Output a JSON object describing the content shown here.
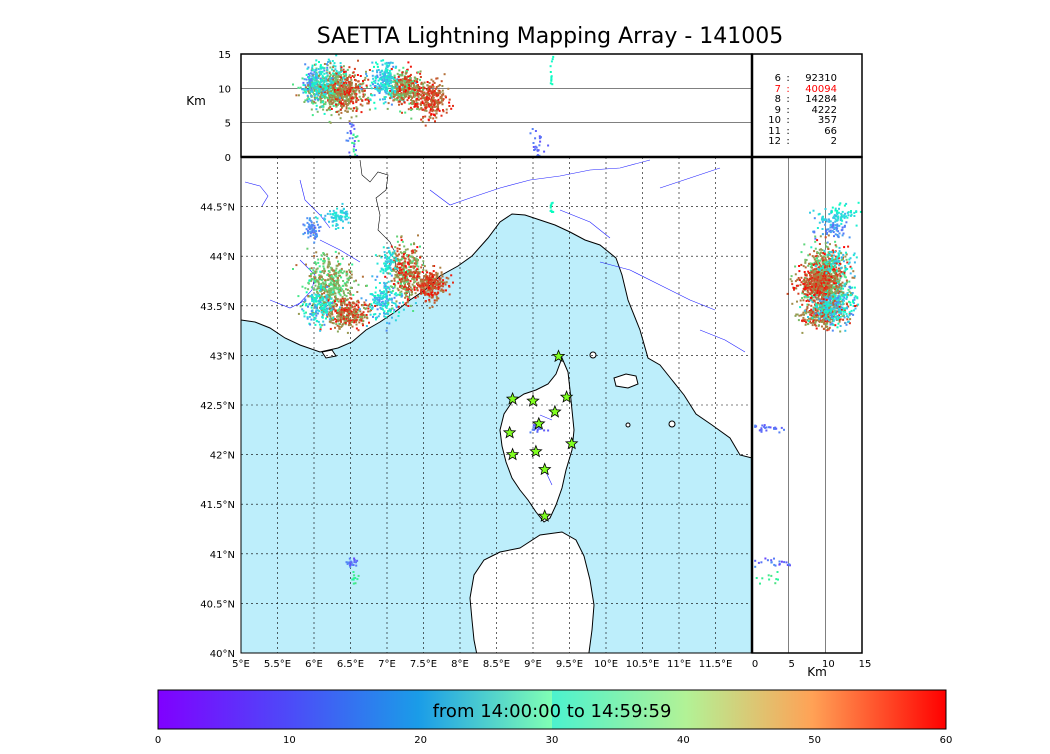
{
  "title": "SAETTA Lightning Mapping Array - 141005",
  "chart_data": {
    "type": "scatter",
    "title": "SAETTA Lightning Mapping Array - 141005",
    "map": {
      "lon_range": [
        5,
        12
      ],
      "lat_range": [
        40,
        45
      ],
      "xticks": [
        {
          "v": 5,
          "t": "5°E"
        },
        {
          "v": 5.5,
          "t": "5.5°E"
        },
        {
          "v": 6,
          "t": "6°E"
        },
        {
          "v": 6.5,
          "t": "6.5°E"
        },
        {
          "v": 7,
          "t": "7°E"
        },
        {
          "v": 7.5,
          "t": "7.5°E"
        },
        {
          "v": 8,
          "t": "8°E"
        },
        {
          "v": 8.5,
          "t": "8.5°E"
        },
        {
          "v": 9,
          "t": "9°E"
        },
        {
          "v": 9.5,
          "t": "9.5°E"
        },
        {
          "v": 10,
          "t": "10°E"
        },
        {
          "v": 10.5,
          "t": "10.5°E"
        },
        {
          "v": 11,
          "t": "11°E"
        },
        {
          "v": 11.5,
          "t": "11.5°E"
        }
      ],
      "yticks": [
        {
          "v": 40,
          "t": "40°N"
        },
        {
          "v": 40.5,
          "t": "40.5°N"
        },
        {
          "v": 41,
          "t": "41°N"
        },
        {
          "v": 41.5,
          "t": "41.5°N"
        },
        {
          "v": 42,
          "t": "42°N"
        },
        {
          "v": 42.5,
          "t": "42.5°N"
        },
        {
          "v": 43,
          "t": "43°N"
        },
        {
          "v": 43.5,
          "t": "43.5°N"
        },
        {
          "v": 44,
          "t": "44°N"
        },
        {
          "v": 44.5,
          "t": "44.5°N"
        }
      ],
      "grid": true
    },
    "altitude_axis": {
      "label": "Km",
      "range": [
        0,
        15
      ],
      "ticks": [
        {
          "v": 0,
          "t": "0"
        },
        {
          "v": 5,
          "t": "5"
        },
        {
          "v": 10,
          "t": "10"
        },
        {
          "v": 15,
          "t": "15"
        }
      ]
    },
    "colorbar": {
      "label": "from 14:00:00 to 14:59:59",
      "range": [
        0,
        60
      ],
      "ticks": [
        {
          "v": 0,
          "t": "0"
        },
        {
          "v": 10,
          "t": "10"
        },
        {
          "v": 20,
          "t": "20"
        },
        {
          "v": 30,
          "t": "30"
        },
        {
          "v": 40,
          "t": "40"
        },
        {
          "v": 50,
          "t": "50"
        },
        {
          "v": 60,
          "t": "60"
        }
      ],
      "colormap": "rainbow"
    },
    "station_counts": [
      {
        "stations": "6",
        "sep": ":",
        "count": "92310",
        "highlight": false
      },
      {
        "stations": "7",
        "sep": ":",
        "count": "40094",
        "highlight": true
      },
      {
        "stations": "8",
        "sep": ":",
        "count": "14284",
        "highlight": false
      },
      {
        "stations": "9",
        "sep": ":",
        "count": "4222",
        "highlight": false
      },
      {
        "stations": "10",
        "sep": ":",
        "count": "357",
        "highlight": false
      },
      {
        "stations": "11",
        "sep": ":",
        "count": "66",
        "highlight": false
      },
      {
        "stations": "12",
        "sep": ":",
        "count": "2",
        "highlight": false
      }
    ],
    "stations": [
      {
        "lon": 9.35,
        "lat": 42.99
      },
      {
        "lon": 8.72,
        "lat": 42.56
      },
      {
        "lon": 9.0,
        "lat": 42.54
      },
      {
        "lon": 9.46,
        "lat": 42.58
      },
      {
        "lon": 9.3,
        "lat": 42.43
      },
      {
        "lon": 9.08,
        "lat": 42.31
      },
      {
        "lon": 8.68,
        "lat": 42.22
      },
      {
        "lon": 9.53,
        "lat": 42.11
      },
      {
        "lon": 9.04,
        "lat": 42.03
      },
      {
        "lon": 8.72,
        "lat": 42.0
      },
      {
        "lon": 9.16,
        "lat": 41.85
      },
      {
        "lon": 9.16,
        "lat": 41.38
      }
    ],
    "clusters": [
      {
        "lon": 5.95,
        "lat": 44.28,
        "slon": 0.05,
        "slat": 0.05,
        "tmin": 8,
        "tmax": 14,
        "n": 60,
        "alt": 11.0
      },
      {
        "lon": 6.32,
        "lat": 44.4,
        "slon": 0.1,
        "slat": 0.05,
        "tmin": 14,
        "tmax": 24,
        "n": 80,
        "alt": 11.5
      },
      {
        "lon": 6.2,
        "lat": 43.72,
        "slon": 0.16,
        "slat": 0.14,
        "tmin": 36,
        "tmax": 52,
        "n": 420,
        "alt": 10.0
      },
      {
        "lon": 6.45,
        "lat": 43.43,
        "slon": 0.14,
        "slat": 0.07,
        "tmin": 44,
        "tmax": 60,
        "n": 320,
        "alt": 9.5
      },
      {
        "lon": 6.05,
        "lat": 43.5,
        "slon": 0.1,
        "slat": 0.1,
        "tmin": 10,
        "tmax": 28,
        "n": 150,
        "alt": 11.0
      },
      {
        "lon": 6.95,
        "lat": 43.55,
        "slon": 0.12,
        "slat": 0.1,
        "tmin": 10,
        "tmax": 28,
        "n": 180,
        "alt": 11.0
      },
      {
        "lon": 7.25,
        "lat": 43.85,
        "slon": 0.12,
        "slat": 0.14,
        "tmin": 38,
        "tmax": 60,
        "n": 380,
        "alt": 10.0
      },
      {
        "lon": 7.6,
        "lat": 43.72,
        "slon": 0.1,
        "slat": 0.07,
        "tmin": 48,
        "tmax": 60,
        "n": 260,
        "alt": 8.5
      },
      {
        "lon": 7.0,
        "lat": 43.95,
        "slon": 0.06,
        "slat": 0.07,
        "tmin": 14,
        "tmax": 26,
        "n": 70,
        "alt": 11.5
      },
      {
        "lon": 9.24,
        "lat": 44.5,
        "slon": 0.01,
        "slat": 0.03,
        "tmin": 25,
        "tmax": 30,
        "n": 12,
        "alt": 13.0
      },
      {
        "lon": 9.04,
        "lat": 42.27,
        "slon": 0.05,
        "slat": 0.02,
        "tmin": 5,
        "tmax": 12,
        "n": 25,
        "alt": 2.0
      },
      {
        "lon": 6.5,
        "lat": 40.92,
        "slon": 0.04,
        "slat": 0.02,
        "tmin": 5,
        "tmax": 12,
        "n": 22,
        "alt": 3.0
      },
      {
        "lon": 6.55,
        "lat": 40.75,
        "slon": 0.05,
        "slat": 0.03,
        "tmin": 30,
        "tmax": 40,
        "n": 10,
        "alt": 2.0
      }
    ]
  }
}
